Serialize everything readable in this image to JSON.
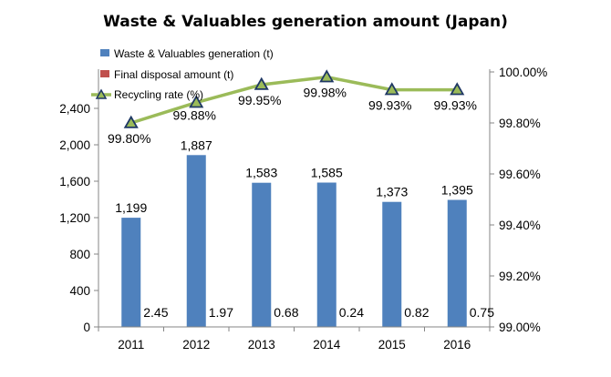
{
  "chart_data": {
    "type": "bar",
    "title": "Waste & Valuables generation amount (Japan)",
    "categories": [
      "2011",
      "2012",
      "2013",
      "2014",
      "2015",
      "2016"
    ],
    "series": [
      {
        "name": "Waste & Valuables generation (t)",
        "kind": "bar",
        "axis": "left",
        "color": "#4f81bd",
        "values": [
          1199,
          1887,
          1583,
          1585,
          1373,
          1395
        ],
        "labels": [
          "1,199",
          "1,887",
          "1,583",
          "1,585",
          "1,373",
          "1,395"
        ]
      },
      {
        "name": "Final disposal amount (t)",
        "kind": "bar",
        "axis": "left",
        "color": "#c0504d",
        "values": [
          2.45,
          1.97,
          0.68,
          0.24,
          0.82,
          0.75
        ],
        "labels": [
          "2.45",
          "1.97",
          "0.68",
          "0.24",
          "0.82",
          "0.75"
        ]
      },
      {
        "name": "Recycling rate (%)",
        "kind": "line",
        "axis": "right",
        "color": "#9bbb59",
        "values": [
          99.8,
          99.88,
          99.95,
          99.98,
          99.93,
          99.93
        ],
        "labels": [
          "99.80%",
          "99.88%",
          "99.95%",
          "99.98%",
          "99.93%",
          "99.93%"
        ]
      }
    ],
    "y_left": {
      "ylim": [
        0,
        2800
      ],
      "ticks": [
        0,
        400,
        800,
        1200,
        1600,
        2000,
        2400
      ],
      "tick_labels": [
        "0",
        "400",
        "800",
        "1,200",
        "1,600",
        "2,000",
        "2,400"
      ]
    },
    "y_right": {
      "ylim": [
        99.0,
        100.0
      ],
      "ticks": [
        99.0,
        99.2,
        99.4,
        99.6,
        99.8,
        100.0
      ],
      "tick_labels": [
        "99.00%",
        "99.20%",
        "99.40%",
        "99.60%",
        "99.80%",
        "100.00%"
      ]
    },
    "legend_position": "top-left",
    "grid": false
  }
}
